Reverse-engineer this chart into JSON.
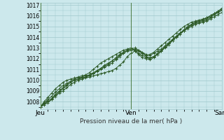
{
  "title": "",
  "xlabel": "Pression niveau de la mer( hPa )",
  "bg_color": "#cce8ec",
  "grid_color": "#a0c8cc",
  "line_color": "#2d5a27",
  "marker_color": "#2d5a27",
  "ylim": [
    1007.3,
    1017.2
  ],
  "xlim": [
    0,
    48
  ],
  "yticks": [
    1008,
    1009,
    1010,
    1011,
    1012,
    1013,
    1014,
    1015,
    1016,
    1017
  ],
  "xtick_positions": [
    0,
    24,
    48
  ],
  "xtick_labels": [
    "Jeu",
    "Ven",
    "Sam"
  ],
  "num_hours": 49,
  "series": [
    [
      1007.5,
      1007.8,
      1008.0,
      1008.2,
      1008.5,
      1008.8,
      1009.0,
      1009.3,
      1009.6,
      1009.8,
      1010.0,
      1010.1,
      1010.2,
      1010.3,
      1010.4,
      1010.5,
      1010.6,
      1010.7,
      1010.8,
      1010.9,
      1011.1,
      1011.4,
      1011.7,
      1012.2,
      1012.5,
      1012.7,
      1012.8,
      1012.6,
      1012.4,
      1012.3,
      1012.5,
      1012.7,
      1012.9,
      1013.2,
      1013.5,
      1013.8,
      1014.1,
      1014.4,
      1014.6,
      1014.8,
      1015.0,
      1015.2,
      1015.3,
      1015.4,
      1015.5,
      1015.7,
      1015.9,
      1016.1,
      1016.3
    ],
    [
      1007.5,
      1007.9,
      1008.2,
      1008.5,
      1008.9,
      1009.2,
      1009.5,
      1009.7,
      1009.9,
      1010.1,
      1010.2,
      1010.3,
      1010.4,
      1010.5,
      1010.6,
      1010.8,
      1011.0,
      1011.2,
      1011.4,
      1011.6,
      1011.9,
      1012.2,
      1012.5,
      1012.7,
      1012.8,
      1012.9,
      1012.7,
      1012.5,
      1012.3,
      1012.4,
      1012.6,
      1012.9,
      1013.2,
      1013.5,
      1013.8,
      1014.1,
      1014.4,
      1014.7,
      1015.0,
      1015.2,
      1015.4,
      1015.5,
      1015.6,
      1015.7,
      1015.8,
      1016.0,
      1016.2,
      1016.4,
      1016.6
    ],
    [
      1007.5,
      1007.8,
      1008.1,
      1008.3,
      1008.7,
      1009.0,
      1009.3,
      1009.6,
      1009.8,
      1010.0,
      1010.1,
      1010.2,
      1010.3,
      1010.4,
      1010.6,
      1010.9,
      1011.1,
      1011.3,
      1011.5,
      1011.8,
      1012.0,
      1012.3,
      1012.6,
      1012.8,
      1012.9,
      1013.0,
      1012.8,
      1012.5,
      1012.2,
      1012.1,
      1012.2,
      1012.4,
      1012.7,
      1013.0,
      1013.3,
      1013.7,
      1014.0,
      1014.3,
      1014.6,
      1014.9,
      1015.1,
      1015.3,
      1015.4,
      1015.5,
      1015.6,
      1015.8,
      1016.1,
      1016.3,
      1016.5
    ],
    [
      1007.5,
      1007.7,
      1007.9,
      1008.2,
      1008.6,
      1008.9,
      1009.2,
      1009.5,
      1009.8,
      1010.0,
      1010.1,
      1010.2,
      1010.3,
      1010.5,
      1010.7,
      1010.9,
      1011.1,
      1011.4,
      1011.6,
      1011.8,
      1012.1,
      1012.4,
      1012.6,
      1012.8,
      1012.9,
      1012.8,
      1012.5,
      1012.3,
      1012.1,
      1012.0,
      1012.2,
      1012.5,
      1012.8,
      1013.1,
      1013.4,
      1013.8,
      1014.1,
      1014.4,
      1014.7,
      1015.0,
      1015.2,
      1015.4,
      1015.5,
      1015.6,
      1015.7,
      1015.9,
      1016.1,
      1016.3,
      1016.5
    ],
    [
      1007.5,
      1008.0,
      1008.4,
      1008.8,
      1009.2,
      1009.5,
      1009.8,
      1010.0,
      1010.1,
      1010.2,
      1010.3,
      1010.4,
      1010.5,
      1010.7,
      1011.0,
      1011.3,
      1011.6,
      1011.8,
      1012.0,
      1012.2,
      1012.4,
      1012.6,
      1012.8,
      1012.9,
      1013.0,
      1012.7,
      1012.4,
      1012.1,
      1012.0,
      1011.9,
      1012.1,
      1012.4,
      1012.7,
      1013.1,
      1013.4,
      1013.7,
      1014.0,
      1014.3,
      1014.6,
      1014.9,
      1015.2,
      1015.4,
      1015.5,
      1015.6,
      1015.8,
      1016.0,
      1016.2,
      1016.4,
      1016.7
    ]
  ]
}
